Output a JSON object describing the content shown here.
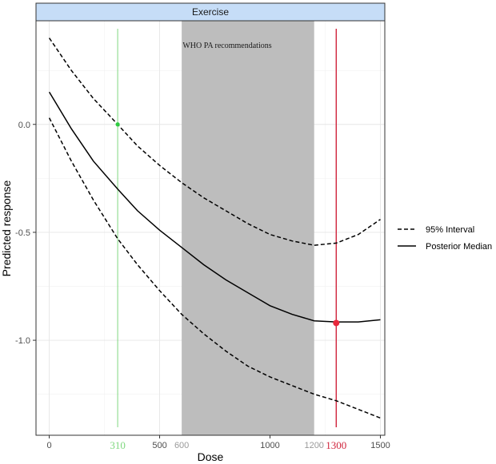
{
  "chart_data": {
    "type": "line",
    "strip_title": "Exercise",
    "xlabel": "Dose",
    "ylabel": "Predicted response",
    "xlim": [
      -60,
      1520
    ],
    "ylim": [
      -1.44,
      0.48
    ],
    "x_ticks": [
      0,
      500,
      1000,
      1500
    ],
    "y_ticks": [
      0.0,
      -0.5,
      -1.0
    ],
    "y_tick_labels": [
      "0.0",
      "-0.5",
      "-1.0"
    ],
    "grid": true,
    "legend_position": "right",
    "series": [
      {
        "name": "95% Interval",
        "style": "dashed",
        "x": [
          0,
          100,
          200,
          310,
          400,
          500,
          600,
          700,
          800,
          900,
          1000,
          1100,
          1200,
          1300,
          1400,
          1500
        ],
        "y": [
          0.4,
          0.25,
          0.12,
          0.0,
          -0.1,
          -0.19,
          -0.27,
          -0.34,
          -0.4,
          -0.46,
          -0.51,
          -0.54,
          -0.56,
          -0.55,
          -0.51,
          -0.44
        ]
      },
      {
        "name": "95% Interval",
        "style": "dashed",
        "x": [
          0,
          100,
          200,
          310,
          400,
          500,
          600,
          700,
          800,
          900,
          1000,
          1100,
          1200,
          1300,
          1400,
          1500
        ],
        "y": [
          0.03,
          -0.17,
          -0.35,
          -0.53,
          -0.65,
          -0.77,
          -0.88,
          -0.97,
          -1.05,
          -1.12,
          -1.17,
          -1.21,
          -1.25,
          -1.28,
          -1.32,
          -1.36
        ]
      },
      {
        "name": "Posterior Median",
        "style": "solid",
        "x": [
          0,
          100,
          200,
          310,
          400,
          500,
          600,
          700,
          800,
          900,
          1000,
          1100,
          1200,
          1300,
          1400,
          1500
        ],
        "y": [
          0.15,
          -0.02,
          -0.17,
          -0.3,
          -0.4,
          -0.49,
          -0.57,
          -0.65,
          -0.72,
          -0.78,
          -0.84,
          -0.88,
          -0.91,
          -0.915,
          -0.915,
          -0.905
        ]
      }
    ],
    "vertical_lines": [
      {
        "x": 310,
        "label": "310",
        "color": "#7fd87f"
      },
      {
        "x": 1300,
        "label": "1300",
        "color": "#d0243c"
      }
    ],
    "points": [
      {
        "x": 310,
        "y": 0.0,
        "color": "#2ecc40"
      },
      {
        "x": 1300,
        "y": -0.92,
        "color": "#e8283c"
      }
    ],
    "shaded_region": {
      "x_start": 600,
      "x_end": 1200,
      "label": "WHO PA recommendations",
      "color": "#bdbdbd"
    },
    "extra_x_tick_labels": [
      {
        "x": 600,
        "label": "600",
        "color": "#9a9a9a"
      },
      {
        "x": 1200,
        "label": "1200",
        "color": "#9a9a9a"
      }
    ]
  }
}
